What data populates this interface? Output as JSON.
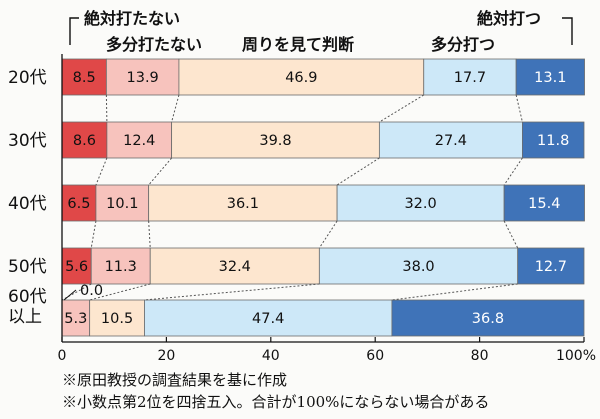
{
  "chart_data": {
    "type": "bar",
    "orientation": "horizontal",
    "stacked": true,
    "categories": [
      "20代",
      "30代",
      "40代",
      "50代",
      "60代以上"
    ],
    "series": [
      {
        "name": "絶対打たない",
        "color": "#e04848",
        "values": [
          8.5,
          8.6,
          6.5,
          5.6,
          0.0
        ]
      },
      {
        "name": "多分打たない",
        "color": "#f7c3bd",
        "values": [
          13.9,
          12.4,
          10.1,
          11.3,
          5.3
        ]
      },
      {
        "name": "周りを見て判断",
        "color": "#fde6cf",
        "values": [
          46.9,
          39.8,
          36.1,
          32.4,
          10.5
        ]
      },
      {
        "name": "多分打つ",
        "color": "#cde8f8",
        "values": [
          17.7,
          27.4,
          32.0,
          38.0,
          47.4
        ]
      },
      {
        "name": "絶対打つ",
        "color": "#3f73b8",
        "values": [
          13.1,
          11.8,
          15.4,
          12.7,
          36.8
        ]
      }
    ],
    "row_labels": [
      [
        "20代"
      ],
      [
        "30代"
      ],
      [
        "40代"
      ],
      [
        "50代"
      ],
      [
        "60代",
        "以上"
      ]
    ],
    "x_ticks": [
      "0",
      "20",
      "40",
      "60",
      "80",
      "100%"
    ],
    "xlim": [
      0,
      100
    ],
    "outside_labels": [
      {
        "row": 4,
        "series": 0,
        "text": "0.0"
      }
    ]
  },
  "notes": [
    "※原田教授の調査結果を基に作成",
    "※小数点第2位を四捨五入。合計が100%にならない場合がある"
  ]
}
